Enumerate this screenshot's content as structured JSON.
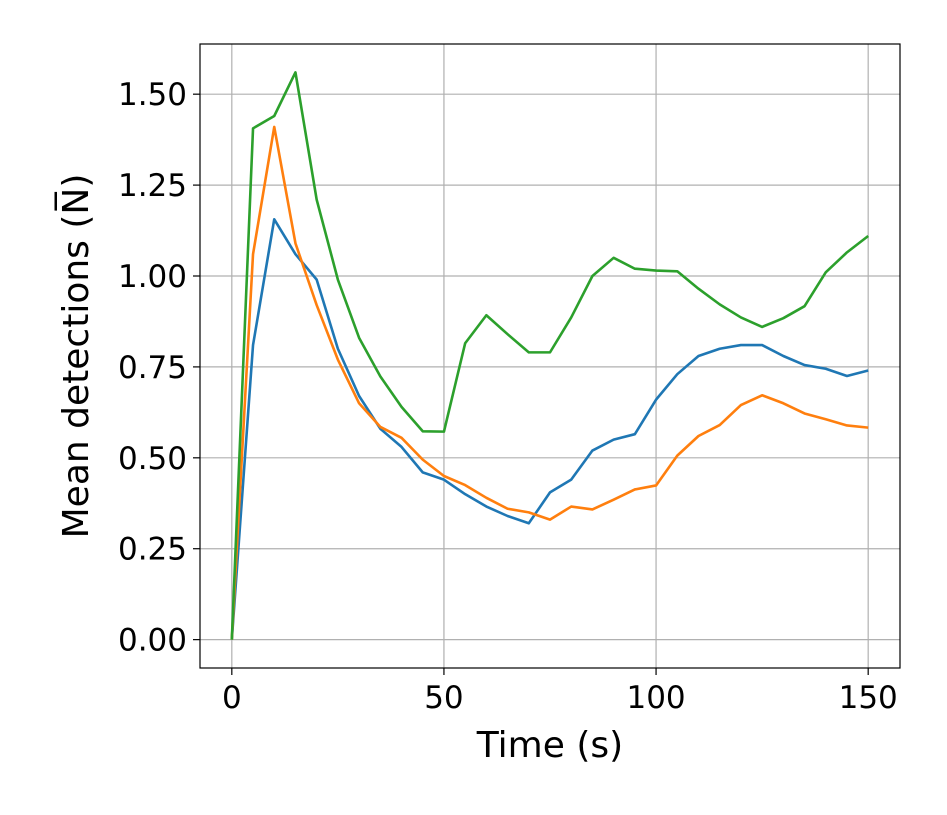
{
  "chart_data": {
    "type": "line",
    "xlabel": "Time (s)",
    "ylabel": "Mean detections (N̅)",
    "x": [
      0,
      5,
      10,
      15,
      20,
      25,
      30,
      35,
      40,
      45,
      50,
      55,
      60,
      65,
      70,
      75,
      80,
      85,
      90,
      95,
      100,
      105,
      110,
      115,
      120,
      125,
      130,
      135,
      140,
      145,
      150
    ],
    "series": [
      {
        "color": "#1f77b4",
        "values": [
          0,
          0.81,
          1.156,
          1.06,
          0.99,
          0.8,
          0.67,
          0.58,
          0.53,
          0.46,
          0.44,
          0.4,
          0.366,
          0.34,
          0.32,
          0.405,
          0.44,
          0.52,
          0.55,
          0.565,
          0.66,
          0.73,
          0.78,
          0.8,
          0.81,
          0.81,
          0.78,
          0.755,
          0.745,
          0.725,
          0.74
        ]
      },
      {
        "color": "#ff7f0e",
        "values": [
          0,
          1.06,
          1.41,
          1.09,
          0.92,
          0.77,
          0.65,
          0.585,
          0.555,
          0.495,
          0.45,
          0.425,
          0.39,
          0.36,
          0.35,
          0.33,
          0.366,
          0.358,
          0.385,
          0.413,
          0.424,
          0.506,
          0.56,
          0.59,
          0.645,
          0.672,
          0.65,
          0.622,
          0.606,
          0.589,
          0.583
        ]
      },
      {
        "color": "#2ca02c",
        "values": [
          0,
          1.406,
          1.44,
          1.56,
          1.21,
          0.99,
          0.83,
          0.724,
          0.64,
          0.573,
          0.572,
          0.815,
          0.892,
          0.84,
          0.79,
          0.79,
          0.886,
          1.0,
          1.05,
          1.02,
          1.015,
          1.013,
          0.965,
          0.922,
          0.886,
          0.86,
          0.884,
          0.917,
          1.01,
          1.065,
          1.11
        ]
      }
    ],
    "xlim": [
      -7.5,
      157.5
    ],
    "ylim": [
      -0.078,
      1.638
    ],
    "xticks": [
      0,
      50,
      100,
      150
    ],
    "yticks": [
      {
        "value": 0,
        "label": "0.00"
      },
      0.25,
      {
        "value": 0.5,
        "label": "0.50"
      },
      0.75,
      {
        "value": 1,
        "label": "1.00"
      },
      1.25,
      {
        "value": 1.5,
        "label": "1.50"
      }
    ],
    "grid": true
  }
}
